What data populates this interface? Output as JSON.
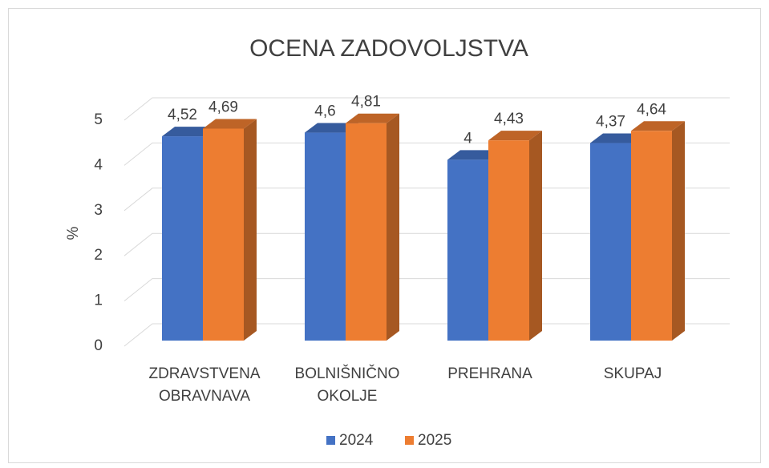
{
  "chart_data": {
    "type": "bar3d",
    "title": "OCENA ZADOVOLJSTVA",
    "y_label": "%",
    "categories": [
      "ZDRAVSTVENA OBRAVNAVA",
      "BOLNIŠNIČNO OKOLJE",
      "PREHRANA",
      "SKUPAJ"
    ],
    "series": [
      {
        "name": "2024",
        "color": "#4472c4",
        "values": [
          4.52,
          4.6,
          4,
          4.37
        ],
        "value_labels": [
          "4,52",
          "4,6",
          "4",
          "4,37"
        ]
      },
      {
        "name": "2025",
        "color": "#ed7d31",
        "values": [
          4.69,
          4.81,
          4.43,
          4.64
        ],
        "value_labels": [
          "4,69",
          "4,81",
          "4,43",
          "4,64"
        ]
      }
    ],
    "ylim": [
      0,
      5
    ],
    "yticks": [
      0,
      1,
      2,
      3,
      4,
      5
    ],
    "grid": true,
    "legend": "bottom"
  }
}
